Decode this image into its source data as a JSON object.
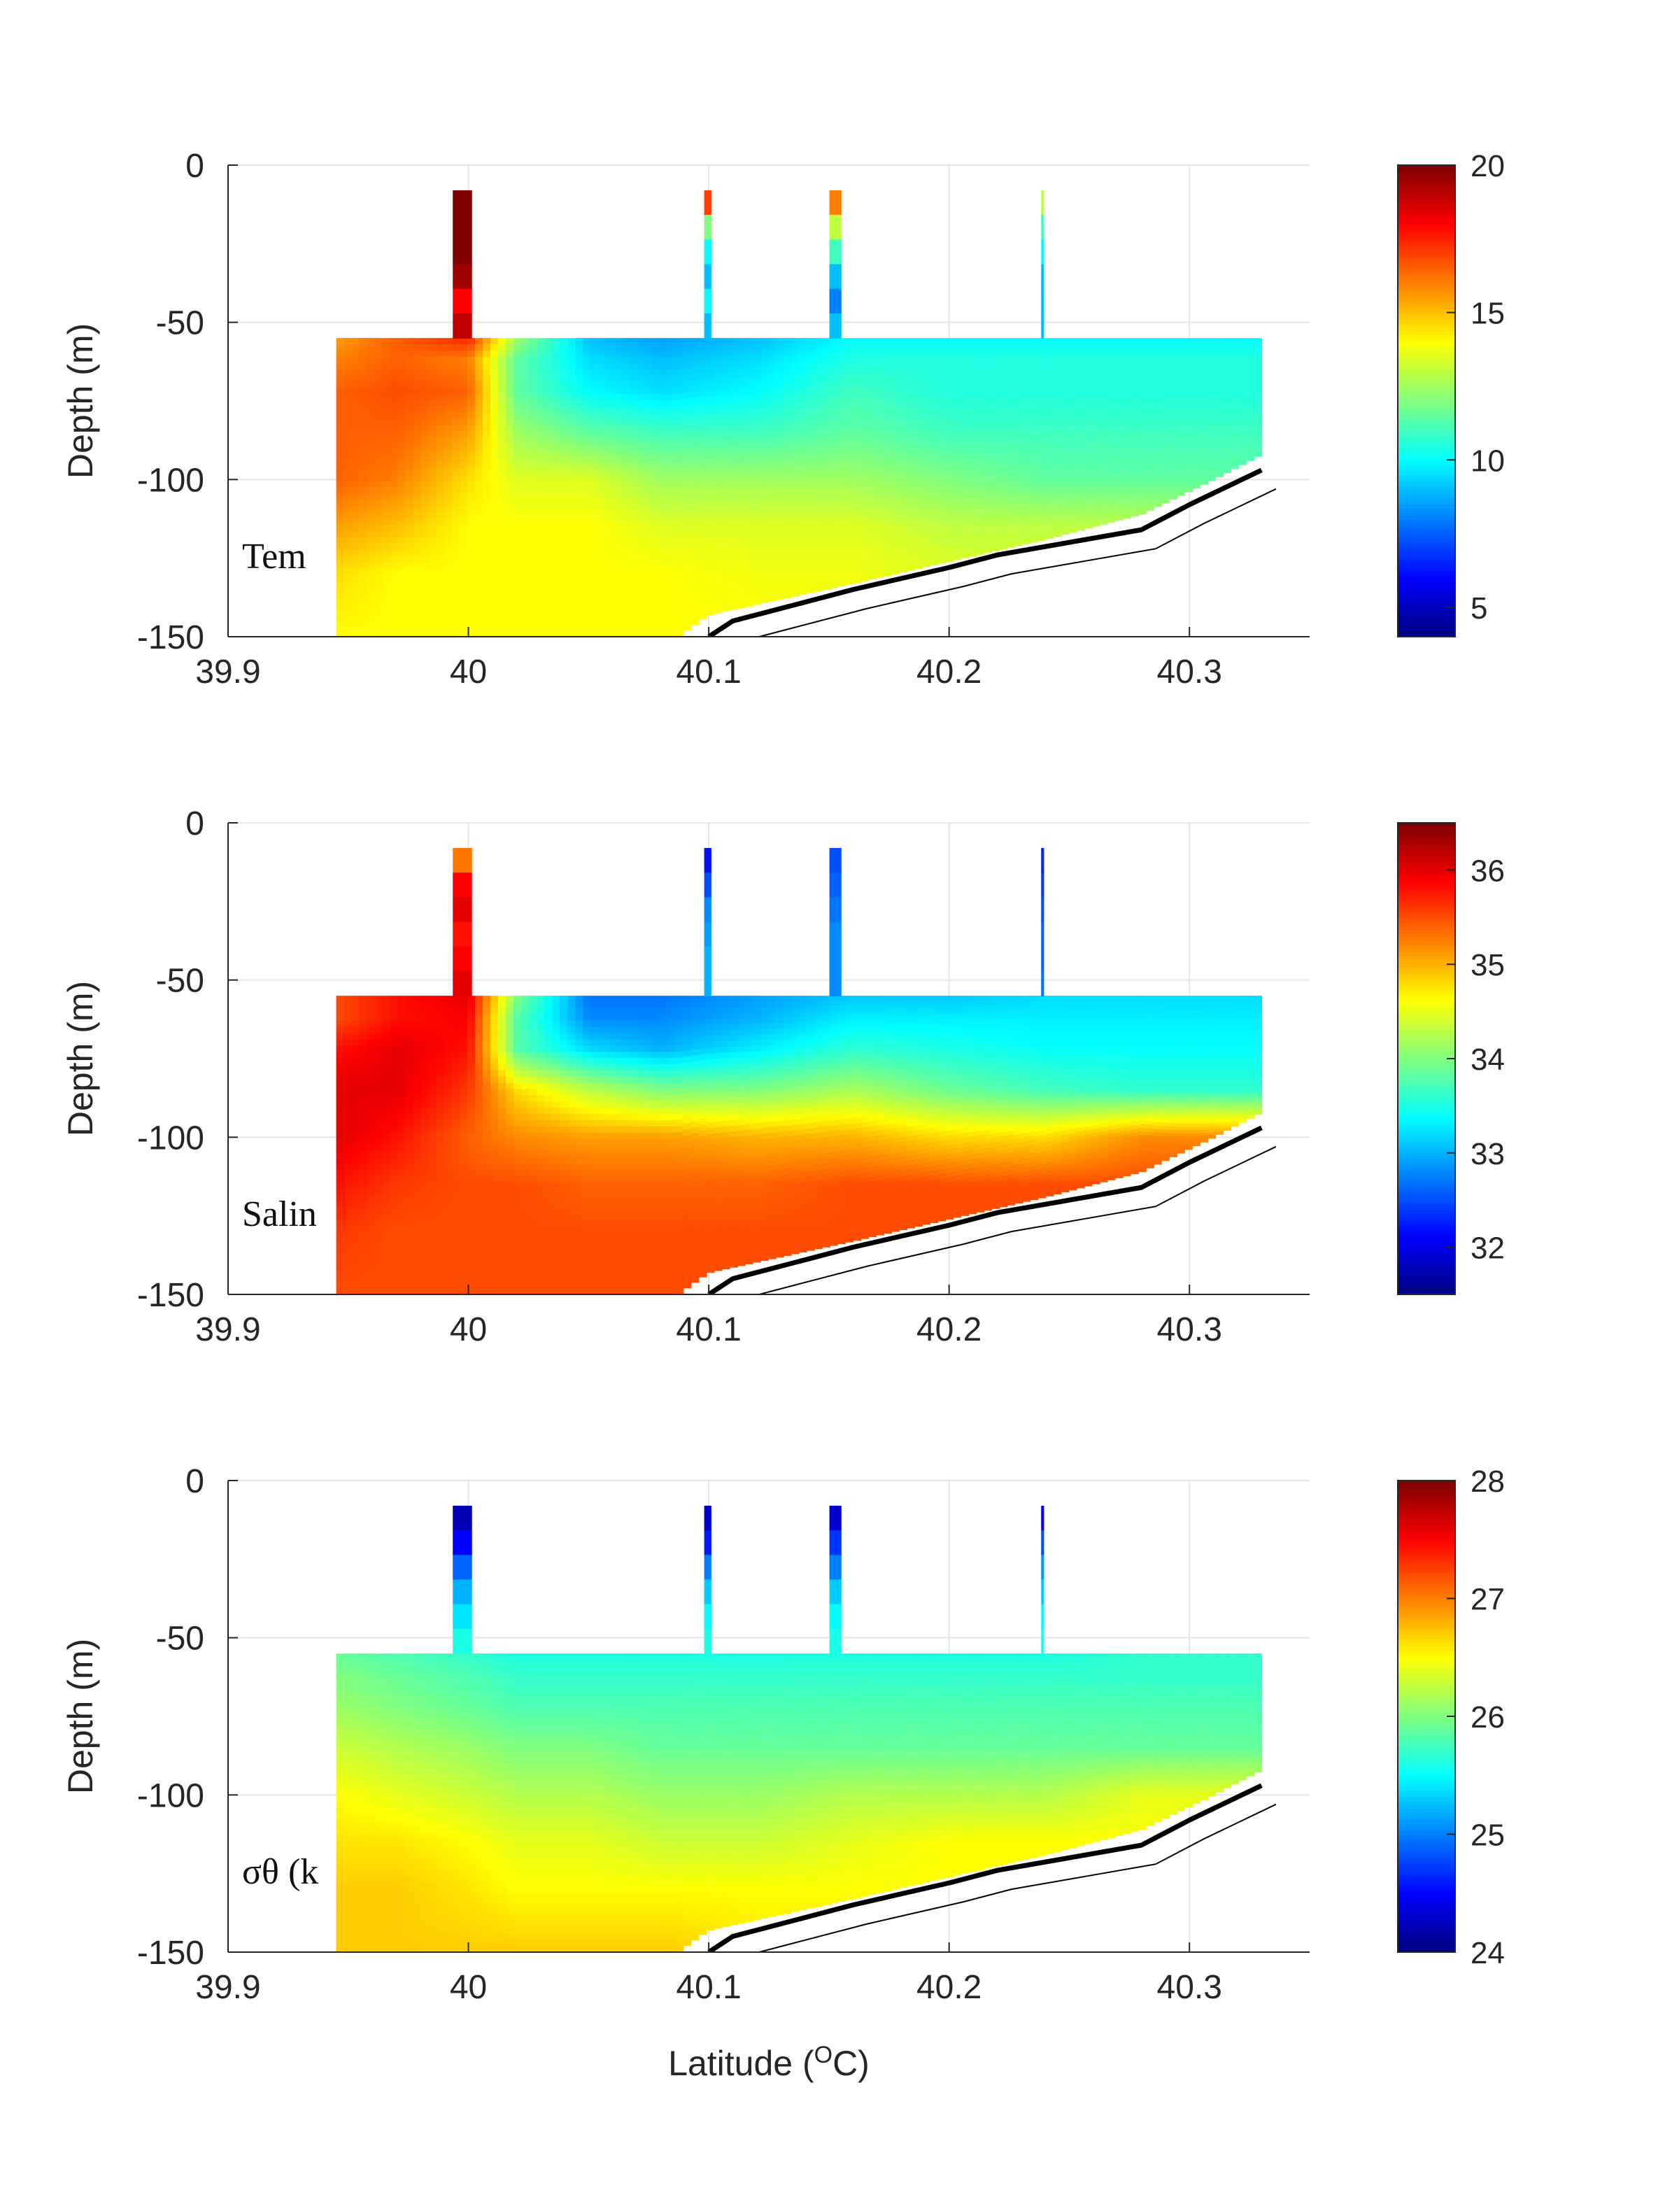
{
  "chart_data": [
    {
      "type": "heatmap",
      "panel_label": "Tem",
      "ylabel": "Depth (m)",
      "xlabel": "",
      "xlim": [
        39.9,
        40.35
      ],
      "ylim": [
        -150,
        0
      ],
      "x_ticks": [
        39.9,
        40,
        40.1,
        40.2,
        40.3
      ],
      "x_tick_labels": [
        "39.9",
        "40",
        "40.1",
        "40.2",
        "40.3"
      ],
      "y_ticks": [
        0,
        -50,
        -100,
        -150
      ],
      "y_tick_labels": [
        "0",
        "-50",
        "-100",
        "-150"
      ],
      "colormap": "jet",
      "clim": [
        4,
        20
      ],
      "colorbar_ticks": [
        5,
        10,
        15,
        20
      ],
      "colorbar_tick_labels": [
        "5",
        "10",
        "15",
        "20"
      ],
      "profiles": [
        {
          "lat": 39.9975,
          "width": 0.008,
          "top": -8,
          "values": [
            20,
            20,
            20,
            19.5,
            18,
            19
          ]
        },
        {
          "lat": 40.0996,
          "width": 0.003,
          "top": -8,
          "values": [
            17,
            12,
            10,
            9,
            10,
            9
          ]
        },
        {
          "lat": 40.1527,
          "width": 0.005,
          "top": -8,
          "values": [
            16,
            13,
            11,
            9,
            8,
            9
          ]
        },
        {
          "lat": 40.2389,
          "width": 0.0012,
          "top": -8,
          "values": [
            13,
            11,
            10,
            9,
            9,
            9
          ]
        }
      ],
      "section_depths": [
        -55,
        -62,
        -72,
        -85,
        -100,
        -115,
        -130,
        -150
      ],
      "section_x": [
        39.945,
        39.97,
        40.0,
        40.02,
        40.05,
        40.08,
        40.12,
        40.16,
        40.2,
        40.24,
        40.28,
        40.33
      ],
      "section_values": [
        [
          15.5,
          16.5,
          17.5,
          12.5,
          9,
          8.5,
          9,
          10,
          10,
          10,
          10,
          10
        ],
        [
          16.0,
          16.5,
          16.0,
          11.5,
          9.5,
          9,
          9.5,
          10.5,
          10.5,
          10.5,
          10.5,
          10.5
        ],
        [
          16.5,
          16.8,
          16.5,
          11.5,
          10,
          9.5,
          10,
          11,
          10.5,
          10.5,
          10.5,
          10.5
        ],
        [
          16.5,
          16.5,
          15.5,
          12.5,
          11.5,
          11,
          11,
          11.5,
          11,
          11,
          11,
          11
        ],
        [
          16.5,
          16.0,
          14.5,
          13.5,
          13.5,
          12.5,
          12.5,
          12.5,
          12,
          11.5,
          11.5,
          11.5
        ],
        [
          15.5,
          15.0,
          14.0,
          14.0,
          14,
          13.5,
          13.5,
          13.5,
          13,
          13,
          13,
          13
        ],
        [
          14.5,
          14.0,
          14.0,
          14.0,
          14,
          14,
          13.8,
          13.8,
          13.5,
          13.5,
          13.5,
          13.5
        ],
        [
          14.0,
          14.0,
          14.0,
          14.0,
          14,
          14,
          14,
          14,
          14,
          14,
          14,
          14
        ]
      ],
      "section_bottom": {
        "lat": [
          39.945,
          40.087,
          40.1,
          40.13,
          40.16,
          40.2,
          40.24,
          40.28,
          40.31,
          40.33
        ],
        "depth": [
          -150,
          -150,
          -143,
          -138,
          -133,
          -126,
          -119,
          -111,
          -100,
          -92
        ]
      },
      "seafloor": {
        "lat": [
          40.1,
          40.11,
          40.13,
          40.16,
          40.2,
          40.22,
          40.25,
          40.28,
          40.3,
          40.33
        ],
        "depth": [
          -150,
          -145,
          -141,
          -135,
          -128,
          -124,
          -120,
          -116,
          -108,
          -97
        ]
      }
    },
    {
      "type": "heatmap",
      "panel_label": "Salin",
      "ylabel": "Depth (m)",
      "xlabel": "",
      "xlim": [
        39.9,
        40.35
      ],
      "ylim": [
        -150,
        0
      ],
      "x_ticks": [
        39.9,
        40,
        40.1,
        40.2,
        40.3
      ],
      "x_tick_labels": [
        "39.9",
        "40",
        "40.1",
        "40.2",
        "40.3"
      ],
      "y_ticks": [
        0,
        -50,
        -100,
        -150
      ],
      "y_tick_labels": [
        "0",
        "-50",
        "-100",
        "-150"
      ],
      "colormap": "jet",
      "clim": [
        31.5,
        36.5
      ],
      "colorbar_ticks": [
        32,
        33,
        34,
        35,
        36
      ],
      "colorbar_tick_labels": [
        "32",
        "33",
        "34",
        "35",
        "36"
      ],
      "profiles": [
        {
          "lat": 39.9975,
          "width": 0.008,
          "top": -8,
          "values": [
            35.3,
            35.9,
            36.0,
            35.8,
            35.9,
            36.0
          ]
        },
        {
          "lat": 40.0996,
          "width": 0.003,
          "top": -8,
          "values": [
            32.2,
            32.5,
            32.8,
            32.9,
            33.0,
            33.0
          ]
        },
        {
          "lat": 40.1527,
          "width": 0.005,
          "top": -8,
          "values": [
            32.5,
            32.6,
            32.7,
            32.8,
            32.8,
            32.8
          ]
        },
        {
          "lat": 40.2389,
          "width": 0.0012,
          "top": -8,
          "values": [
            32.3,
            32.4,
            32.5,
            32.6,
            32.6,
            32.7
          ]
        }
      ],
      "section_depths": [
        -55,
        -62,
        -72,
        -85,
        -100,
        -115,
        -130,
        -150
      ],
      "section_x": [
        39.945,
        39.97,
        40.0,
        40.02,
        40.05,
        40.08,
        40.12,
        40.16,
        40.2,
        40.24,
        40.28,
        40.33
      ],
      "section_values": [
        [
          35.5,
          35.8,
          36.0,
          34.0,
          32.7,
          32.7,
          32.9,
          33.1,
          33.1,
          33.2,
          33.2,
          33.2
        ],
        [
          35.5,
          35.8,
          35.9,
          33.8,
          32.8,
          32.8,
          33.0,
          33.3,
          33.3,
          33.3,
          33.3,
          33.3
        ],
        [
          35.8,
          36.0,
          35.8,
          33.8,
          33.2,
          33.0,
          33.3,
          33.6,
          33.5,
          33.4,
          33.4,
          33.4
        ],
        [
          36.0,
          36.0,
          35.6,
          34.8,
          34.3,
          34.0,
          34.0,
          34.2,
          33.9,
          33.7,
          33.6,
          33.6
        ],
        [
          36.0,
          35.8,
          35.4,
          35.2,
          35.1,
          35.1,
          35.0,
          35.0,
          34.8,
          34.8,
          35.2,
          35.2
        ],
        [
          35.8,
          35.6,
          35.5,
          35.5,
          35.4,
          35.4,
          35.4,
          35.5,
          35.5,
          35.5,
          35.5,
          35.5
        ],
        [
          35.6,
          35.5,
          35.5,
          35.5,
          35.5,
          35.5,
          35.5,
          35.5,
          35.5,
          35.5,
          35.5,
          35.5
        ],
        [
          35.5,
          35.5,
          35.5,
          35.5,
          35.5,
          35.5,
          35.5,
          35.5,
          35.5,
          35.5,
          35.5,
          35.5
        ]
      ],
      "section_bottom": {
        "lat": [
          39.945,
          40.087,
          40.1,
          40.13,
          40.16,
          40.2,
          40.24,
          40.28,
          40.31,
          40.33
        ],
        "depth": [
          -150,
          -150,
          -143,
          -138,
          -133,
          -126,
          -119,
          -111,
          -100,
          -92
        ]
      },
      "seafloor": {
        "lat": [
          40.1,
          40.11,
          40.13,
          40.16,
          40.2,
          40.22,
          40.25,
          40.28,
          40.3,
          40.33
        ],
        "depth": [
          -150,
          -145,
          -141,
          -135,
          -128,
          -124,
          -120,
          -116,
          -108,
          -97
        ]
      }
    },
    {
      "type": "heatmap",
      "panel_label": "σθ (k",
      "ylabel": "Depth (m)",
      "xlabel": "Latitude (OC)",
      "xlim": [
        39.9,
        40.35
      ],
      "ylim": [
        -150,
        0
      ],
      "x_ticks": [
        39.9,
        40,
        40.1,
        40.2,
        40.3
      ],
      "x_tick_labels": [
        "39.9",
        "40",
        "40.1",
        "40.2",
        "40.3"
      ],
      "y_ticks": [
        0,
        -50,
        -100,
        -150
      ],
      "y_tick_labels": [
        "0",
        "-50",
        "-100",
        "-150"
      ],
      "colormap": "jet",
      "clim": [
        24,
        28
      ],
      "colorbar_ticks": [
        24,
        25,
        26,
        27,
        28
      ],
      "colorbar_tick_labels": [
        "24",
        "25",
        "26",
        "27",
        "28"
      ],
      "profiles": [
        {
          "lat": 39.9975,
          "width": 0.008,
          "top": -8,
          "values": [
            24.2,
            24.5,
            24.9,
            25.2,
            25.4,
            25.6
          ]
        },
        {
          "lat": 40.0996,
          "width": 0.003,
          "top": -8,
          "values": [
            24.3,
            24.6,
            25.0,
            25.3,
            25.5,
            25.6
          ]
        },
        {
          "lat": 40.1527,
          "width": 0.005,
          "top": -8,
          "values": [
            24.3,
            24.7,
            25.0,
            25.3,
            25.5,
            25.6
          ]
        },
        {
          "lat": 40.2389,
          "width": 0.0012,
          "top": -8,
          "values": [
            24.5,
            24.8,
            25.1,
            25.3,
            25.5,
            25.6
          ]
        }
      ],
      "section_depths": [
        -55,
        -62,
        -72,
        -85,
        -100,
        -115,
        -130,
        -150
      ],
      "section_x": [
        39.945,
        39.97,
        40.0,
        40.02,
        40.05,
        40.08,
        40.12,
        40.16,
        40.2,
        40.24,
        40.28,
        40.33
      ],
      "section_values": [
        [
          25.9,
          25.8,
          25.7,
          25.6,
          25.6,
          25.6,
          25.6,
          25.6,
          25.6,
          25.6,
          25.7,
          25.7
        ],
        [
          26.0,
          25.9,
          25.8,
          25.7,
          25.7,
          25.7,
          25.7,
          25.7,
          25.7,
          25.7,
          25.7,
          25.7
        ],
        [
          26.1,
          26.0,
          25.9,
          25.8,
          25.8,
          25.8,
          25.8,
          25.8,
          25.8,
          25.8,
          25.8,
          25.8
        ],
        [
          26.3,
          26.2,
          26.1,
          26.0,
          26.0,
          25.9,
          25.9,
          25.9,
          25.9,
          25.9,
          25.9,
          25.9
        ],
        [
          26.5,
          26.4,
          26.3,
          26.2,
          26.2,
          26.1,
          26.1,
          26.2,
          26.2,
          26.2,
          26.4,
          26.4
        ],
        [
          26.6,
          26.6,
          26.5,
          26.4,
          26.4,
          26.3,
          26.3,
          26.4,
          26.5,
          26.5,
          26.5,
          26.5
        ],
        [
          26.7,
          26.7,
          26.6,
          26.5,
          26.5,
          26.5,
          26.5,
          26.5,
          26.5,
          26.5,
          26.5,
          26.5
        ],
        [
          26.7,
          26.7,
          26.7,
          26.7,
          26.7,
          26.7,
          26.6,
          26.6,
          26.6,
          26.6,
          26.6,
          26.6
        ]
      ],
      "section_bottom": {
        "lat": [
          39.945,
          40.087,
          40.1,
          40.13,
          40.16,
          40.2,
          40.24,
          40.28,
          40.31,
          40.33
        ],
        "depth": [
          -150,
          -150,
          -143,
          -138,
          -133,
          -126,
          -119,
          -111,
          -100,
          -92
        ]
      },
      "seafloor": {
        "lat": [
          40.1,
          40.11,
          40.13,
          40.16,
          40.2,
          40.22,
          40.25,
          40.28,
          40.3,
          40.33
        ],
        "depth": [
          -150,
          -145,
          -141,
          -135,
          -128,
          -124,
          -120,
          -116,
          -108,
          -97
        ]
      }
    }
  ]
}
